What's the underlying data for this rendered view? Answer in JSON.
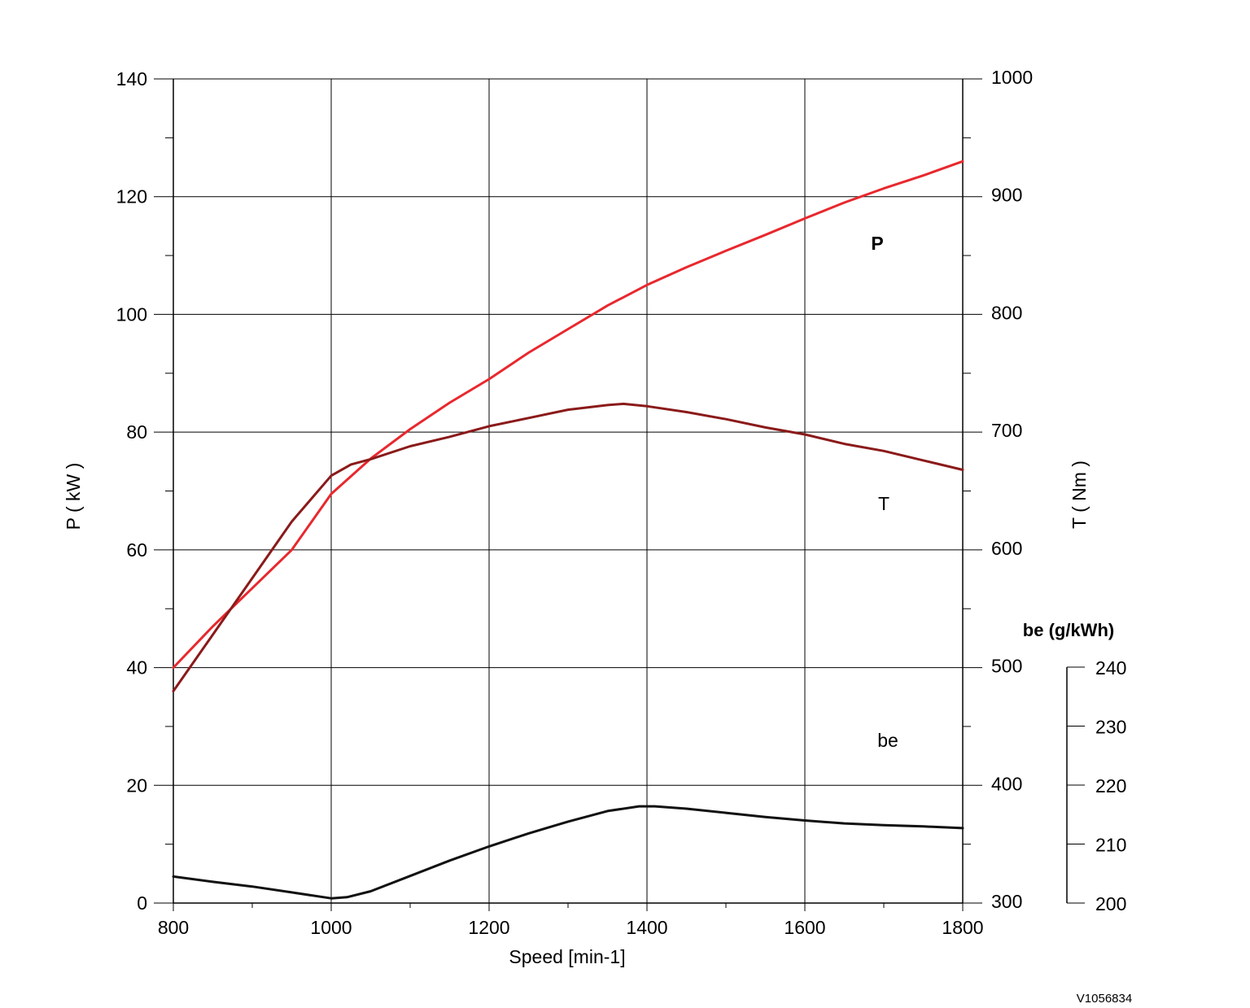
{
  "chart_data": {
    "type": "line",
    "xlabel": "Speed [min-1]",
    "xlim": [
      800,
      1800
    ],
    "x_ticks": [
      "800",
      "1000",
      "1200",
      "1400",
      "1600",
      "1800"
    ],
    "grid": true,
    "axes": {
      "left": {
        "label": "P ( kW )",
        "range": [
          0,
          140
        ],
        "ticks": [
          "0",
          "20",
          "40",
          "60",
          "80",
          "100",
          "120",
          "140"
        ]
      },
      "right": {
        "label": "T ( Nm )",
        "range": [
          300,
          1000
        ],
        "ticks": [
          "300",
          "400",
          "500",
          "600",
          "700",
          "800",
          "900",
          "1000"
        ]
      },
      "be": {
        "label": "be (g/kWh)",
        "range": [
          200,
          240
        ],
        "ticks": [
          "200",
          "210",
          "220",
          "230",
          "240"
        ]
      }
    },
    "series": [
      {
        "name": "P",
        "axis": "left",
        "color": "#e8282e",
        "x": [
          800,
          850,
          900,
          950,
          1000,
          1050,
          1100,
          1150,
          1200,
          1250,
          1300,
          1350,
          1400,
          1450,
          1500,
          1550,
          1600,
          1650,
          1700,
          1750,
          1800
        ],
        "y": [
          40,
          47,
          53.5,
          60,
          69.5,
          75.5,
          80.5,
          85,
          89,
          93.5,
          97.5,
          101.5,
          105,
          108,
          110.8,
          113.5,
          116.3,
          119,
          121.4,
          123.6,
          126
        ]
      },
      {
        "name": "T",
        "axis": "right",
        "color": "#8b1a1a",
        "x": [
          800,
          850,
          900,
          950,
          1000,
          1025,
          1050,
          1100,
          1150,
          1200,
          1250,
          1300,
          1350,
          1370,
          1400,
          1450,
          1500,
          1550,
          1600,
          1650,
          1700,
          1750,
          1800
        ],
        "y": [
          480,
          528,
          576,
          624,
          663,
          672.5,
          677,
          688,
          696,
          705,
          712,
          719,
          723,
          724,
          722,
          717,
          711,
          704,
          698,
          690,
          684,
          676,
          668
        ]
      },
      {
        "name": "be",
        "axis": "be",
        "color": "#111111",
        "x": [
          800,
          850,
          900,
          950,
          1000,
          1020,
          1050,
          1100,
          1150,
          1200,
          1250,
          1300,
          1350,
          1390,
          1410,
          1450,
          1500,
          1550,
          1600,
          1650,
          1700,
          1750,
          1800
        ],
        "y": [
          204.5,
          203.6,
          202.8,
          201.8,
          200.8,
          201.0,
          202.0,
          204.6,
          207.2,
          209.6,
          211.8,
          213.8,
          215.6,
          216.4,
          216.4,
          216.0,
          215.3,
          214.6,
          214.0,
          213.5,
          213.2,
          213.0,
          212.7
        ]
      }
    ],
    "series_labels": {
      "P": "P",
      "T": "T",
      "be": "be"
    }
  },
  "figure_id": "V1056834",
  "colors": {
    "grid": "#000000",
    "axis": "#000000"
  }
}
